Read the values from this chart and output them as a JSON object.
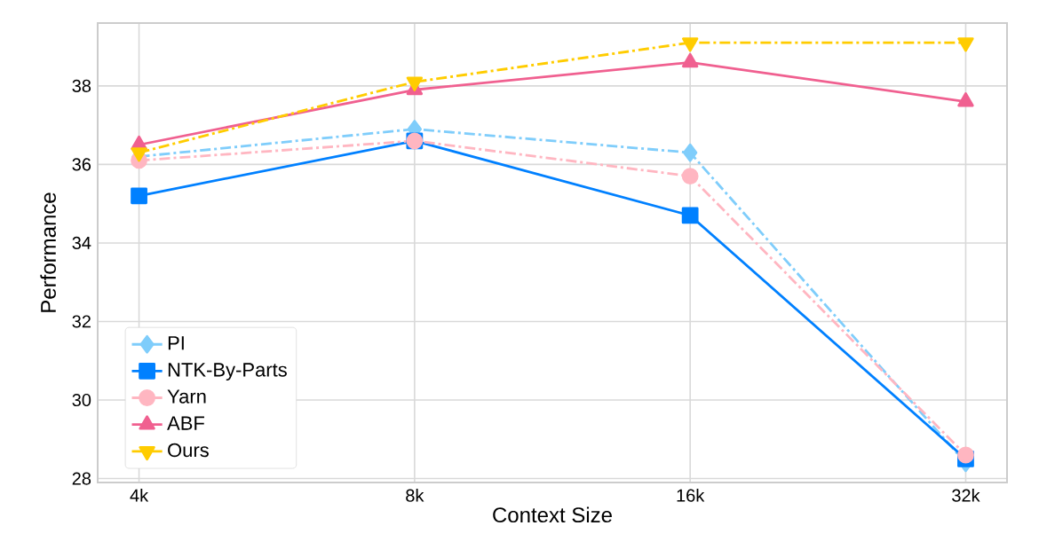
{
  "chart_data": {
    "type": "line",
    "xlabel": "Context Size",
    "ylabel": "Performance",
    "categories": [
      "4k",
      "8k",
      "16k",
      "32k"
    ],
    "ylim": [
      27.9,
      39.6
    ],
    "yticks": [
      28,
      30,
      32,
      34,
      36,
      38
    ],
    "grid": true,
    "legend": "bottom left",
    "series": [
      {
        "name": "PI",
        "color": "#7fcdfb",
        "values": [
          36.2,
          36.9,
          36.3,
          28.4
        ],
        "marker": "diamond",
        "line_style": "dashdot"
      },
      {
        "name": "NTK-By-Parts",
        "color": "#0080ff",
        "values": [
          35.2,
          36.6,
          34.7,
          28.5
        ],
        "marker": "square",
        "line_style": "solid"
      },
      {
        "name": "Yarn",
        "color": "#ffb6c1",
        "values": [
          36.1,
          36.6,
          35.7,
          28.6
        ],
        "marker": "circle",
        "line_style": "dashdot"
      },
      {
        "name": "ABF",
        "color": "#f06090",
        "values": [
          36.5,
          37.9,
          38.6,
          37.6
        ],
        "marker": "triangle",
        "line_style": "solid"
      },
      {
        "name": "Ours",
        "color": "#ffcc00",
        "values": [
          36.3,
          38.1,
          39.1,
          39.1
        ],
        "marker": "triangle_down",
        "line_style": "dashdot"
      }
    ]
  }
}
